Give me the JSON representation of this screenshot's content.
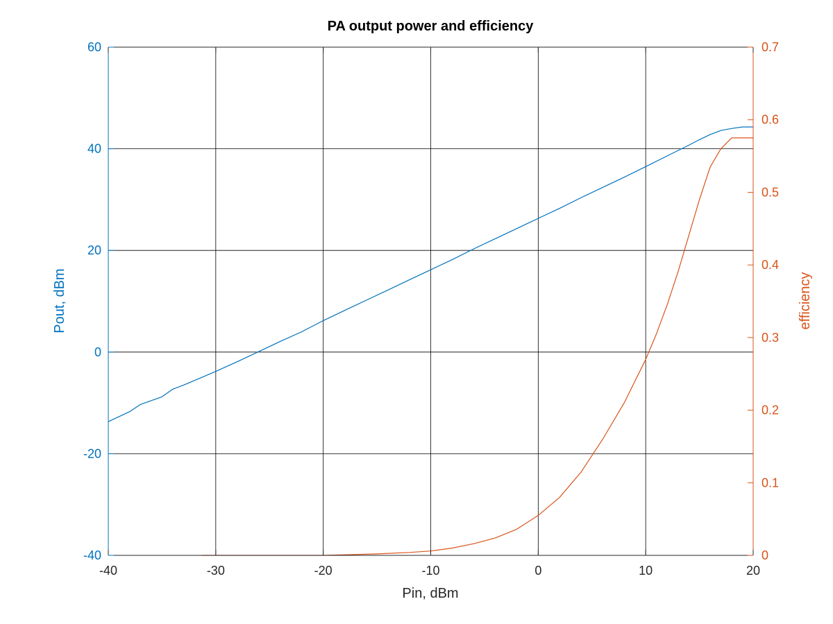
{
  "chart_data": {
    "type": "line",
    "title": "PA output power and efficiency",
    "xlabel": "Pin, dBm",
    "ylabel_left": "Pout, dBm",
    "ylabel_right": "efficiency",
    "xlim": [
      -40,
      20
    ],
    "ylim_left": [
      -40,
      60
    ],
    "ylim_right": [
      0,
      0.7
    ],
    "grid": true,
    "x_ticks": [
      "-40",
      "-30",
      "-20",
      "-10",
      "0",
      "10",
      "20"
    ],
    "y_left_ticks": [
      "-40",
      "-20",
      "0",
      "20",
      "40",
      "60"
    ],
    "y_right_ticks": [
      "0",
      "0.1",
      "0.2",
      "0.3",
      "0.4",
      "0.5",
      "0.6",
      "0.7"
    ],
    "colors": {
      "left_axis": "#0072BD",
      "right_axis": "#D95319",
      "grid": "#000000"
    },
    "series": [
      {
        "axis": "left",
        "x": [
          -40,
          -38,
          -37,
          -35,
          -34,
          -33,
          -31,
          -30,
          -28,
          -26,
          -24,
          -22,
          -20,
          -18,
          -16,
          -14,
          -12,
          -10,
          -8,
          -6,
          -4,
          -2,
          0,
          2,
          4,
          6,
          8,
          10,
          12,
          14,
          15,
          16,
          17,
          18,
          19,
          20
        ],
        "y": [
          -13.7,
          -11.7,
          -10.3,
          -8.8,
          -7.3,
          -6.5,
          -4.7,
          -3.8,
          -1.9,
          0.1,
          2.1,
          4.0,
          6.2,
          8.2,
          10.2,
          12.2,
          14.2,
          16.2,
          18.2,
          20.3,
          22.3,
          24.3,
          26.3,
          28.3,
          30.4,
          32.4,
          34.4,
          36.5,
          38.6,
          40.7,
          41.8,
          42.8,
          43.6,
          44.0,
          44.3,
          44.3
        ]
      },
      {
        "axis": "right",
        "x": [
          -31.3,
          -25,
          -20,
          -15,
          -12,
          -10,
          -8,
          -6,
          -4,
          -2,
          0,
          2,
          4,
          6,
          8,
          10,
          11,
          12,
          13,
          14,
          15,
          16,
          17,
          18,
          19,
          20
        ],
        "y": [
          0,
          0,
          0,
          0.002,
          0.004,
          0.006,
          0.01,
          0.016,
          0.024,
          0.036,
          0.055,
          0.08,
          0.115,
          0.16,
          0.21,
          0.27,
          0.305,
          0.345,
          0.39,
          0.44,
          0.49,
          0.535,
          0.56,
          0.575,
          0.575,
          0.575
        ]
      }
    ]
  }
}
